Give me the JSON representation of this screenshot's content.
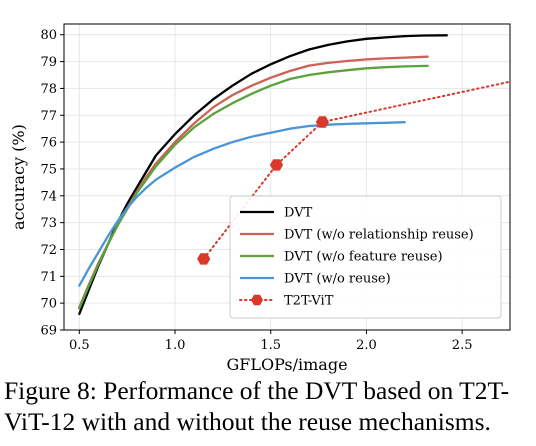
{
  "chart_data": {
    "type": "line",
    "xlabel": "GFLOPs/image",
    "ylabel": "accuracy (%)",
    "xlim": [
      0.42,
      2.75
    ],
    "ylim": [
      69,
      80.4
    ],
    "xticks": [
      0.5,
      1.0,
      1.5,
      2.0,
      2.5
    ],
    "xtick_labels": [
      "0.5",
      "1.0",
      "1.5",
      "2.0",
      "2.5"
    ],
    "yticks": [
      69,
      70,
      71,
      72,
      73,
      74,
      75,
      76,
      77,
      78,
      79,
      80
    ],
    "ytick_labels": [
      "69",
      "70",
      "71",
      "72",
      "73",
      "74",
      "75",
      "76",
      "77",
      "78",
      "79",
      "80"
    ],
    "grid": true,
    "legend_position": "lower-right",
    "series": [
      {
        "name": "DVT",
        "color": "#000000",
        "style": "solid",
        "points": [
          [
            0.5,
            69.6
          ],
          [
            0.55,
            70.5
          ],
          [
            0.6,
            71.4
          ],
          [
            0.65,
            72.2
          ],
          [
            0.7,
            73.0
          ],
          [
            0.75,
            73.7
          ],
          [
            0.8,
            74.3
          ],
          [
            0.85,
            74.9
          ],
          [
            0.9,
            75.5
          ],
          [
            1.0,
            76.3
          ],
          [
            1.1,
            77.0
          ],
          [
            1.2,
            77.6
          ],
          [
            1.3,
            78.1
          ],
          [
            1.4,
            78.55
          ],
          [
            1.5,
            78.9
          ],
          [
            1.6,
            79.2
          ],
          [
            1.7,
            79.45
          ],
          [
            1.8,
            79.62
          ],
          [
            1.9,
            79.75
          ],
          [
            2.0,
            79.85
          ],
          [
            2.1,
            79.9
          ],
          [
            2.2,
            79.95
          ],
          [
            2.3,
            79.97
          ],
          [
            2.42,
            79.98
          ]
        ]
      },
      {
        "name": "DVT (w/o relationship reuse)",
        "color": "#cd6155",
        "style": "solid",
        "points": [
          [
            0.5,
            69.85
          ],
          [
            0.55,
            70.7
          ],
          [
            0.6,
            71.5
          ],
          [
            0.65,
            72.2
          ],
          [
            0.7,
            72.9
          ],
          [
            0.75,
            73.55
          ],
          [
            0.8,
            74.15
          ],
          [
            0.85,
            74.7
          ],
          [
            0.9,
            75.2
          ],
          [
            1.0,
            76.0
          ],
          [
            1.1,
            76.7
          ],
          [
            1.2,
            77.3
          ],
          [
            1.3,
            77.75
          ],
          [
            1.4,
            78.1
          ],
          [
            1.5,
            78.4
          ],
          [
            1.6,
            78.65
          ],
          [
            1.7,
            78.85
          ],
          [
            1.8,
            78.95
          ],
          [
            1.9,
            79.02
          ],
          [
            2.0,
            79.08
          ],
          [
            2.1,
            79.12
          ],
          [
            2.2,
            79.15
          ],
          [
            2.32,
            79.18
          ]
        ]
      },
      {
        "name": "DVT (w/o feature reuse)",
        "color": "#5aa33b",
        "style": "solid",
        "points": [
          [
            0.5,
            69.8
          ],
          [
            0.55,
            70.65
          ],
          [
            0.6,
            71.45
          ],
          [
            0.65,
            72.2
          ],
          [
            0.7,
            72.9
          ],
          [
            0.75,
            73.5
          ],
          [
            0.8,
            74.1
          ],
          [
            0.85,
            74.6
          ],
          [
            0.9,
            75.1
          ],
          [
            1.0,
            75.9
          ],
          [
            1.1,
            76.55
          ],
          [
            1.2,
            77.05
          ],
          [
            1.3,
            77.45
          ],
          [
            1.4,
            77.8
          ],
          [
            1.5,
            78.1
          ],
          [
            1.6,
            78.35
          ],
          [
            1.7,
            78.5
          ],
          [
            1.8,
            78.6
          ],
          [
            1.9,
            78.68
          ],
          [
            2.0,
            78.75
          ],
          [
            2.1,
            78.79
          ],
          [
            2.2,
            78.82
          ],
          [
            2.32,
            78.84
          ]
        ]
      },
      {
        "name": "DVT (w/o reuse)",
        "color": "#4a95d8",
        "style": "solid",
        "points": [
          [
            0.5,
            70.65
          ],
          [
            0.55,
            71.3
          ],
          [
            0.6,
            71.9
          ],
          [
            0.65,
            72.5
          ],
          [
            0.7,
            73.05
          ],
          [
            0.75,
            73.55
          ],
          [
            0.8,
            73.95
          ],
          [
            0.85,
            74.3
          ],
          [
            0.9,
            74.6
          ],
          [
            1.0,
            75.05
          ],
          [
            1.1,
            75.45
          ],
          [
            1.2,
            75.75
          ],
          [
            1.3,
            76.0
          ],
          [
            1.4,
            76.2
          ],
          [
            1.5,
            76.35
          ],
          [
            1.6,
            76.5
          ],
          [
            1.7,
            76.6
          ],
          [
            1.8,
            76.65
          ],
          [
            1.9,
            76.68
          ],
          [
            2.0,
            76.7
          ],
          [
            2.1,
            76.72
          ],
          [
            2.2,
            76.74
          ]
        ]
      },
      {
        "name": "T2T-ViT",
        "color": "#d9382b",
        "style": "dotted",
        "marker": "hexagon",
        "points": [
          [
            1.15,
            71.65
          ],
          [
            1.53,
            75.15
          ],
          [
            1.77,
            76.75
          ],
          [
            2.75,
            78.25
          ]
        ],
        "marked_points": [
          [
            1.15,
            71.65
          ],
          [
            1.53,
            75.15
          ],
          [
            1.77,
            76.75
          ]
        ]
      }
    ]
  },
  "caption": {
    "line1": "Figure 8: Performance of the DVT based on T2T-",
    "line2": "ViT-12 with and without the reuse mechanisms."
  }
}
